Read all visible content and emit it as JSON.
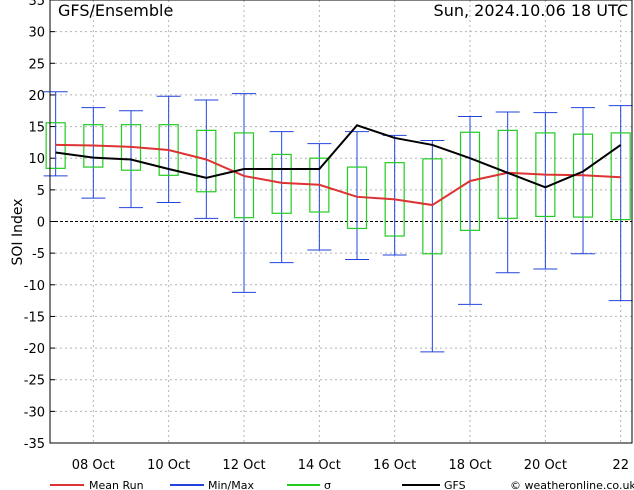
{
  "header": {
    "title": "GFS/Ensemble",
    "datetime": "Sun, 2024.10.06   18 UTC"
  },
  "footer": {
    "credit": "© weatheronline.co.uk"
  },
  "chart_data": {
    "type": "box",
    "ylabel": "SOI Index",
    "ylim": [
      -35,
      35
    ],
    "yticks": [
      -35,
      -30,
      -25,
      -20,
      -15,
      -10,
      -5,
      0,
      5,
      10,
      15,
      20,
      25,
      30,
      35
    ],
    "grid": true,
    "xtick_labels": [
      "08 Oct",
      "10 Oct",
      "12 Oct",
      "14 Oct",
      "16 Oct",
      "18 Oct",
      "20 Oct",
      "22"
    ],
    "xtick_pos": [
      1,
      3,
      5,
      7,
      9,
      11,
      13,
      15
    ],
    "x": [
      0,
      1,
      2,
      3,
      4,
      5,
      6,
      7,
      8,
      9,
      10,
      11,
      12,
      13,
      14,
      15
    ],
    "xlim": [
      -0.15,
      15.3
    ],
    "series": [
      {
        "name": "Mean Run",
        "color": "#dd3333",
        "values": [
          12.1,
          12.0,
          11.8,
          11.3,
          9.8,
          7.2,
          6.1,
          5.8,
          3.9,
          3.5,
          2.6,
          6.4,
          7.7,
          7.4,
          7.3,
          7.0
        ]
      },
      {
        "name": "Min/Max",
        "color": "#2244dd",
        "min": [
          7.2,
          3.7,
          2.2,
          3.0,
          0.5,
          -11.2,
          -6.5,
          -4.5,
          -6.0,
          -5.3,
          -20.6,
          -13.1,
          -8.1,
          -7.5,
          -5.1,
          -12.5
        ],
        "max": [
          20.5,
          18.0,
          17.5,
          19.8,
          19.2,
          20.2,
          14.2,
          12.3,
          14.2,
          13.6,
          12.8,
          16.6,
          17.3,
          17.2,
          18.0,
          18.3
        ]
      },
      {
        "name": "σ",
        "color": "#22cc22",
        "low": [
          8.4,
          8.6,
          8.1,
          7.3,
          4.7,
          0.6,
          1.3,
          1.5,
          -1.1,
          -2.3,
          -5.1,
          -1.4,
          0.5,
          0.8,
          0.7,
          0.3
        ],
        "high": [
          15.6,
          15.3,
          15.3,
          15.3,
          14.4,
          14.0,
          10.6,
          10.0,
          8.6,
          9.3,
          9.9,
          14.1,
          14.4,
          14.0,
          13.8,
          14.0
        ]
      },
      {
        "name": "GFS",
        "color": "#000000",
        "values": [
          10.9,
          10.1,
          9.8,
          8.3,
          6.9,
          8.3,
          8.3,
          8.3,
          15.2,
          13.2,
          12.1,
          10.0,
          7.7,
          5.4,
          7.9,
          12.1
        ]
      }
    ]
  }
}
